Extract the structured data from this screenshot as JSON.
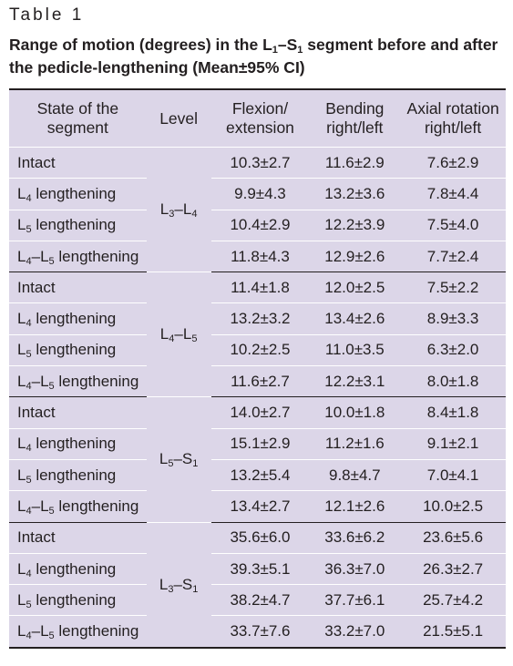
{
  "table_label": "Table 1",
  "caption": {
    "pre": "Range of motion (degrees) in the L",
    "sub1": "1",
    "mid": "–S",
    "sub2": "1",
    "post": " segment before and after the pedicle-lengthening (Mean±95% CI)"
  },
  "headers": {
    "state": "State of the segment",
    "level": "Level",
    "flexion": "Flexion/ extension",
    "bending": "Bending right/left",
    "axial": "Axial rotation right/left"
  },
  "groups": [
    {
      "level": {
        "a": "L",
        "a_sub": "3",
        "sep": "–",
        "b": "L",
        "b_sub": "4"
      },
      "rows": [
        {
          "flexion": "10.3±2.7",
          "bending": "11.6±2.9",
          "axial": "7.6±2.9"
        },
        {
          "flexion": "9.9±4.3",
          "bending": "13.2±3.6",
          "axial": "7.8±4.4"
        },
        {
          "flexion": "10.4±2.9",
          "bending": "12.2±3.9",
          "axial": "7.5±4.0"
        },
        {
          "flexion": "11.8±4.3",
          "bending": "12.9±2.6",
          "axial": "7.7±2.4"
        }
      ]
    },
    {
      "level": {
        "a": "L",
        "a_sub": "4",
        "sep": "–",
        "b": "L",
        "b_sub": "5"
      },
      "rows": [
        {
          "flexion": "11.4±1.8",
          "bending": "12.0±2.5",
          "axial": "7.5±2.2"
        },
        {
          "flexion": "13.2±3.2",
          "bending": "13.4±2.6",
          "axial": "8.9±3.3"
        },
        {
          "flexion": "10.2±2.5",
          "bending": "11.0±3.5",
          "axial": "6.3±2.0"
        },
        {
          "flexion": "11.6±2.7",
          "bending": "12.2±3.1",
          "axial": "8.0±1.8"
        }
      ]
    },
    {
      "level": {
        "a": "L",
        "a_sub": "5",
        "sep": "–",
        "b": "S",
        "b_sub": "1"
      },
      "rows": [
        {
          "flexion": "14.0±2.7",
          "bending": "10.0±1.8",
          "axial": "8.4±1.8"
        },
        {
          "flexion": "15.1±2.9",
          "bending": "11.2±1.6",
          "axial": "9.1±2.1"
        },
        {
          "flexion": "13.2±5.4",
          "bending": "9.8±4.7",
          "axial": "7.0±4.1"
        },
        {
          "flexion": "13.4±2.7",
          "bending": "12.1±2.6",
          "axial": "10.0±2.5"
        }
      ]
    },
    {
      "level": {
        "a": "L",
        "a_sub": "3",
        "sep": "–",
        "b": "S",
        "b_sub": "1"
      },
      "rows": [
        {
          "flexion": "35.6±6.0",
          "bending": "33.6±6.2",
          "axial": "23.6±5.6"
        },
        {
          "flexion": "39.3±5.1",
          "bending": "36.3±7.0",
          "axial": "26.3±2.7"
        },
        {
          "flexion": "38.2±4.7",
          "bending": "37.7±6.1",
          "axial": "25.7±4.2"
        },
        {
          "flexion": "33.7±7.6",
          "bending": "33.2±7.0",
          "axial": "21.5±5.1"
        }
      ]
    }
  ],
  "states": {
    "intact": "Intact",
    "l": "L",
    "l4_sub": "4",
    "l5_sub": "5",
    "dash": "–",
    "lengthening": " lengthening"
  }
}
